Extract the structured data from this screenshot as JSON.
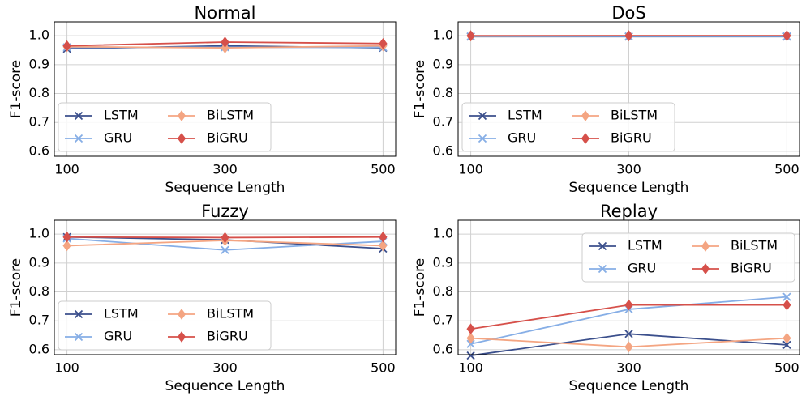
{
  "chart_data": [
    {
      "type": "line",
      "title": "Normal",
      "x_label": "Sequence Length",
      "y_label": "F1-score",
      "x": [
        100,
        300,
        500
      ],
      "xlim": [
        84,
        516
      ],
      "ylim": [
        0.583,
        1.048
      ],
      "xticks": [
        100,
        300,
        500
      ],
      "yticks": [
        0.6,
        0.7,
        0.8,
        0.9,
        {
          "value": 1,
          "label": "1.0"
        }
      ],
      "grid": true,
      "legend": "lower left",
      "series": [
        {
          "name": "LSTM",
          "color": "#3b4f8c",
          "marker": "x",
          "values": [
            0.955,
            0.965,
            0.958
          ]
        },
        {
          "name": "GRU",
          "color": "#86aee6",
          "marker": "x",
          "values": [
            0.96,
            0.96,
            0.96
          ]
        },
        {
          "name": "BiLSTM",
          "color": "#f4a582",
          "marker": "diamond",
          "values": [
            0.962,
            0.958,
            0.965
          ]
        },
        {
          "name": "BiGRU",
          "color": "#d6504a",
          "marker": "diamond",
          "values": [
            0.965,
            0.978,
            0.973
          ]
        }
      ]
    },
    {
      "type": "line",
      "title": "DoS",
      "x_label": "Sequence Length",
      "y_label": "F1-score",
      "x": [
        100,
        300,
        500
      ],
      "xlim": [
        84,
        516
      ],
      "ylim": [
        0.583,
        1.048
      ],
      "xticks": [
        100,
        300,
        500
      ],
      "yticks": [
        0.6,
        0.7,
        0.8,
        0.9,
        {
          "value": 1,
          "label": "1.0"
        }
      ],
      "grid": true,
      "legend": "lower left",
      "series": [
        {
          "name": "LSTM",
          "color": "#3b4f8c",
          "marker": "x",
          "values": [
            0.997,
            0.997,
            0.997
          ]
        },
        {
          "name": "GRU",
          "color": "#86aee6",
          "marker": "x",
          "values": [
            0.998,
            0.998,
            0.998
          ]
        },
        {
          "name": "BiLSTM",
          "color": "#f4a582",
          "marker": "diamond",
          "values": [
            0.999,
            1.0,
            1.0
          ]
        },
        {
          "name": "BiGRU",
          "color": "#d6504a",
          "marker": "diamond",
          "values": [
            1.0,
            1.0,
            1.0
          ]
        }
      ]
    },
    {
      "type": "line",
      "title": "Fuzzy",
      "x_label": "Sequence Length",
      "y_label": "F1-score",
      "x": [
        100,
        300,
        500
      ],
      "xlim": [
        84,
        516
      ],
      "ylim": [
        0.583,
        1.048
      ],
      "xticks": [
        100,
        300,
        500
      ],
      "yticks": [
        0.6,
        0.7,
        0.8,
        0.9,
        {
          "value": 1,
          "label": "1.0"
        }
      ],
      "grid": true,
      "legend": "lower left",
      "series": [
        {
          "name": "LSTM",
          "color": "#3b4f8c",
          "marker": "x",
          "values": [
            0.99,
            0.98,
            0.95
          ]
        },
        {
          "name": "GRU",
          "color": "#86aee6",
          "marker": "x",
          "values": [
            0.985,
            0.945,
            0.975
          ]
        },
        {
          "name": "BiLSTM",
          "color": "#f4a582",
          "marker": "diamond",
          "values": [
            0.96,
            0.978,
            0.96
          ]
        },
        {
          "name": "BiGRU",
          "color": "#d6504a",
          "marker": "diamond",
          "values": [
            0.99,
            0.988,
            0.99
          ]
        }
      ]
    },
    {
      "type": "line",
      "title": "Replay",
      "x_label": "Sequence Length",
      "y_label": "F1-score",
      "x": [
        100,
        300,
        500
      ],
      "xlim": [
        84,
        516
      ],
      "ylim": [
        0.583,
        1.048
      ],
      "xticks": [
        100,
        300,
        500
      ],
      "yticks": [
        0.6,
        0.7,
        0.8,
        0.9,
        {
          "value": 1,
          "label": "1.0"
        }
      ],
      "grid": true,
      "legend": "upper right",
      "series": [
        {
          "name": "LSTM",
          "color": "#3b4f8c",
          "marker": "x",
          "values": [
            0.58,
            0.655,
            0.617
          ]
        },
        {
          "name": "GRU",
          "color": "#86aee6",
          "marker": "x",
          "values": [
            0.62,
            0.74,
            0.783
          ]
        },
        {
          "name": "BiLSTM",
          "color": "#f4a582",
          "marker": "diamond",
          "values": [
            0.64,
            0.61,
            0.64
          ]
        },
        {
          "name": "BiGRU",
          "color": "#d6504a",
          "marker": "diamond",
          "values": [
            0.672,
            0.755,
            0.755
          ]
        }
      ]
    }
  ]
}
